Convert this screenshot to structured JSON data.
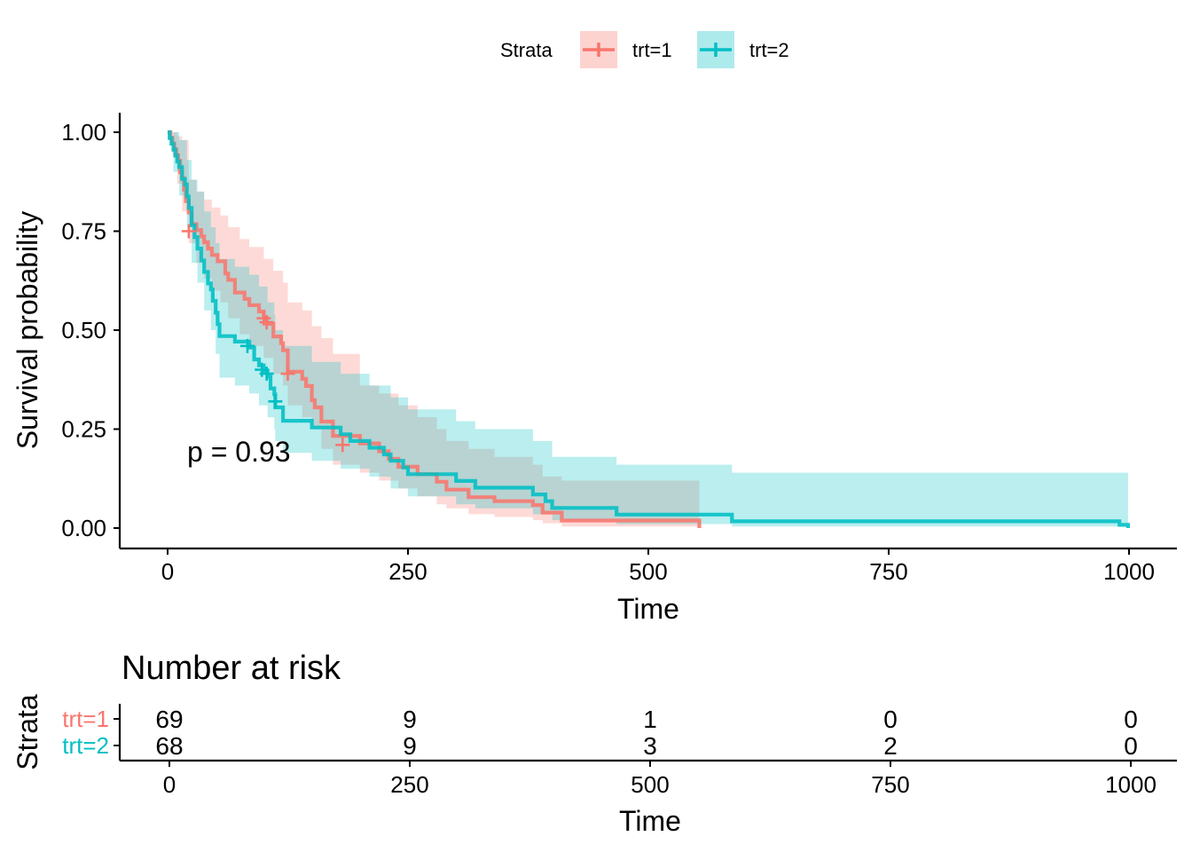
{
  "chart_data": {
    "type": "line",
    "subtype": "kaplan-meier",
    "title": "",
    "xlabel": "Time",
    "ylabel": "Survival probability",
    "xlim": [
      0,
      1000
    ],
    "ylim": [
      0,
      1
    ],
    "xticks": [
      "0",
      "250",
      "500",
      "750",
      "1000"
    ],
    "yticks": [
      "0.00",
      "0.25",
      "0.50",
      "0.75",
      "1.00"
    ],
    "grid": false,
    "legend": {
      "title": "Strata",
      "position": "top",
      "entries": [
        "trt=1",
        "trt=2"
      ]
    },
    "annotation": "p = 0.93",
    "series": [
      {
        "name": "trt=1",
        "color": "#F8766D",
        "steps": [
          [
            0,
            1.0
          ],
          [
            3,
            0.986
          ],
          [
            5,
            0.971
          ],
          [
            7,
            0.957
          ],
          [
            9,
            0.942
          ],
          [
            11,
            0.928
          ],
          [
            13,
            0.899
          ],
          [
            15,
            0.884
          ],
          [
            17,
            0.855
          ],
          [
            19,
            0.826
          ],
          [
            22,
            0.797
          ],
          [
            25,
            0.768
          ],
          [
            30,
            0.753
          ],
          [
            35,
            0.737
          ],
          [
            38,
            0.722
          ],
          [
            42,
            0.706
          ],
          [
            46,
            0.69
          ],
          [
            52,
            0.674
          ],
          [
            60,
            0.643
          ],
          [
            63,
            0.627
          ],
          [
            70,
            0.595
          ],
          [
            80,
            0.579
          ],
          [
            85,
            0.563
          ],
          [
            95,
            0.547
          ],
          [
            100,
            0.532
          ],
          [
            103,
            0.516
          ],
          [
            110,
            0.484
          ],
          [
            118,
            0.467
          ],
          [
            120,
            0.449
          ],
          [
            125,
            0.395
          ],
          [
            140,
            0.377
          ],
          [
            144,
            0.359
          ],
          [
            150,
            0.323
          ],
          [
            153,
            0.305
          ],
          [
            160,
            0.269
          ],
          [
            172,
            0.233
          ],
          [
            200,
            0.214
          ],
          [
            220,
            0.194
          ],
          [
            230,
            0.175
          ],
          [
            240,
            0.155
          ],
          [
            260,
            0.136
          ],
          [
            280,
            0.117
          ],
          [
            290,
            0.097
          ],
          [
            313,
            0.078
          ],
          [
            340,
            0.068
          ],
          [
            380,
            0.058
          ],
          [
            390,
            0.039
          ],
          [
            410,
            0.019
          ],
          [
            553,
            0.0
          ]
        ],
        "lower": [
          [
            0,
            1.0
          ],
          [
            5,
            0.94
          ],
          [
            10,
            0.87
          ],
          [
            15,
            0.8
          ],
          [
            22,
            0.72
          ],
          [
            30,
            0.67
          ],
          [
            38,
            0.63
          ],
          [
            46,
            0.6
          ],
          [
            55,
            0.57
          ],
          [
            63,
            0.53
          ],
          [
            75,
            0.49
          ],
          [
            85,
            0.46
          ],
          [
            100,
            0.43
          ],
          [
            110,
            0.39
          ],
          [
            120,
            0.36
          ],
          [
            125,
            0.31
          ],
          [
            140,
            0.28
          ],
          [
            150,
            0.25
          ],
          [
            160,
            0.2
          ],
          [
            172,
            0.16
          ],
          [
            200,
            0.14
          ],
          [
            220,
            0.12
          ],
          [
            240,
            0.1
          ],
          [
            260,
            0.08
          ],
          [
            280,
            0.06
          ],
          [
            290,
            0.05
          ],
          [
            313,
            0.035
          ],
          [
            340,
            0.028
          ],
          [
            380,
            0.02
          ],
          [
            390,
            0.012
          ],
          [
            410,
            0.004
          ],
          [
            553,
            0.004
          ]
        ],
        "upper": [
          [
            0,
            1.0
          ],
          [
            5,
            1.0
          ],
          [
            10,
            0.99
          ],
          [
            15,
            0.98
          ],
          [
            22,
            0.88
          ],
          [
            30,
            0.85
          ],
          [
            38,
            0.83
          ],
          [
            46,
            0.81
          ],
          [
            55,
            0.79
          ],
          [
            63,
            0.76
          ],
          [
            75,
            0.73
          ],
          [
            85,
            0.71
          ],
          [
            100,
            0.68
          ],
          [
            110,
            0.65
          ],
          [
            120,
            0.62
          ],
          [
            125,
            0.57
          ],
          [
            140,
            0.55
          ],
          [
            150,
            0.51
          ],
          [
            160,
            0.48
          ],
          [
            172,
            0.44
          ],
          [
            200,
            0.36
          ],
          [
            220,
            0.34
          ],
          [
            240,
            0.31
          ],
          [
            260,
            0.28
          ],
          [
            280,
            0.25
          ],
          [
            290,
            0.22
          ],
          [
            313,
            0.2
          ],
          [
            340,
            0.18
          ],
          [
            380,
            0.16
          ],
          [
            390,
            0.13
          ],
          [
            410,
            0.12
          ],
          [
            553,
            0.12
          ]
        ],
        "censored": [
          [
            22,
            0.75
          ],
          [
            100,
            0.53
          ],
          [
            103,
            0.52
          ],
          [
            125,
            0.39
          ],
          [
            182,
            0.21
          ]
        ]
      },
      {
        "name": "trt=2",
        "color": "#00BFC4",
        "steps": [
          [
            0,
            1.0
          ],
          [
            2,
            0.985
          ],
          [
            4,
            0.971
          ],
          [
            6,
            0.956
          ],
          [
            8,
            0.941
          ],
          [
            10,
            0.926
          ],
          [
            12,
            0.912
          ],
          [
            15,
            0.882
          ],
          [
            18,
            0.868
          ],
          [
            20,
            0.838
          ],
          [
            22,
            0.809
          ],
          [
            25,
            0.765
          ],
          [
            28,
            0.735
          ],
          [
            31,
            0.706
          ],
          [
            35,
            0.676
          ],
          [
            38,
            0.647
          ],
          [
            42,
            0.618
          ],
          [
            45,
            0.603
          ],
          [
            47,
            0.574
          ],
          [
            50,
            0.544
          ],
          [
            52,
            0.515
          ],
          [
            54,
            0.485
          ],
          [
            70,
            0.471
          ],
          [
            85,
            0.456
          ],
          [
            90,
            0.426
          ],
          [
            95,
            0.411
          ],
          [
            100,
            0.397
          ],
          [
            104,
            0.382
          ],
          [
            107,
            0.353
          ],
          [
            111,
            0.338
          ],
          [
            112,
            0.305
          ],
          [
            120,
            0.271
          ],
          [
            150,
            0.254
          ],
          [
            180,
            0.237
          ],
          [
            190,
            0.22
          ],
          [
            210,
            0.203
          ],
          [
            225,
            0.186
          ],
          [
            232,
            0.17
          ],
          [
            245,
            0.153
          ],
          [
            250,
            0.136
          ],
          [
            300,
            0.119
          ],
          [
            320,
            0.102
          ],
          [
            380,
            0.085
          ],
          [
            393,
            0.068
          ],
          [
            400,
            0.051
          ],
          [
            467,
            0.034
          ],
          [
            587,
            0.017
          ],
          [
            990,
            0.008
          ],
          [
            999,
            0.0
          ]
        ],
        "lower": [
          [
            0,
            1.0
          ],
          [
            6,
            0.9
          ],
          [
            12,
            0.84
          ],
          [
            20,
            0.76
          ],
          [
            25,
            0.67
          ],
          [
            31,
            0.62
          ],
          [
            38,
            0.55
          ],
          [
            45,
            0.5
          ],
          [
            50,
            0.44
          ],
          [
            54,
            0.38
          ],
          [
            70,
            0.36
          ],
          [
            85,
            0.34
          ],
          [
            95,
            0.31
          ],
          [
            104,
            0.28
          ],
          [
            111,
            0.25
          ],
          [
            112,
            0.22
          ],
          [
            120,
            0.19
          ],
          [
            150,
            0.17
          ],
          [
            180,
            0.15
          ],
          [
            210,
            0.13
          ],
          [
            232,
            0.1
          ],
          [
            250,
            0.08
          ],
          [
            300,
            0.06
          ],
          [
            320,
            0.05
          ],
          [
            380,
            0.035
          ],
          [
            400,
            0.02
          ],
          [
            467,
            0.01
          ],
          [
            587,
            0.004
          ],
          [
            999,
            0.004
          ]
        ],
        "upper": [
          [
            0,
            1.0
          ],
          [
            6,
            1.0
          ],
          [
            12,
            0.98
          ],
          [
            20,
            0.93
          ],
          [
            25,
            0.88
          ],
          [
            31,
            0.85
          ],
          [
            38,
            0.8
          ],
          [
            45,
            0.76
          ],
          [
            50,
            0.72
          ],
          [
            54,
            0.68
          ],
          [
            70,
            0.66
          ],
          [
            85,
            0.64
          ],
          [
            95,
            0.61
          ],
          [
            104,
            0.57
          ],
          [
            111,
            0.54
          ],
          [
            112,
            0.5
          ],
          [
            120,
            0.46
          ],
          [
            150,
            0.42
          ],
          [
            180,
            0.39
          ],
          [
            210,
            0.36
          ],
          [
            232,
            0.33
          ],
          [
            250,
            0.3
          ],
          [
            300,
            0.27
          ],
          [
            320,
            0.25
          ],
          [
            380,
            0.22
          ],
          [
            400,
            0.18
          ],
          [
            467,
            0.16
          ],
          [
            587,
            0.14
          ],
          [
            999,
            0.14
          ]
        ],
        "censored": [
          [
            83,
            0.46
          ],
          [
            98,
            0.4
          ],
          [
            103,
            0.39
          ],
          [
            112,
            0.32
          ]
        ]
      }
    ],
    "risk_table": {
      "title": "Number at risk",
      "ylabel": "Strata",
      "xlabel": "Time",
      "times": [
        0,
        250,
        500,
        750,
        1000
      ],
      "rows": [
        {
          "label": "trt=1",
          "color": "#F8766D",
          "counts": [
            "69",
            "9",
            "1",
            "0",
            "0"
          ]
        },
        {
          "label": "trt=2",
          "color": "#00BFC4",
          "counts": [
            "68",
            "9",
            "3",
            "2",
            "0"
          ]
        }
      ]
    }
  }
}
